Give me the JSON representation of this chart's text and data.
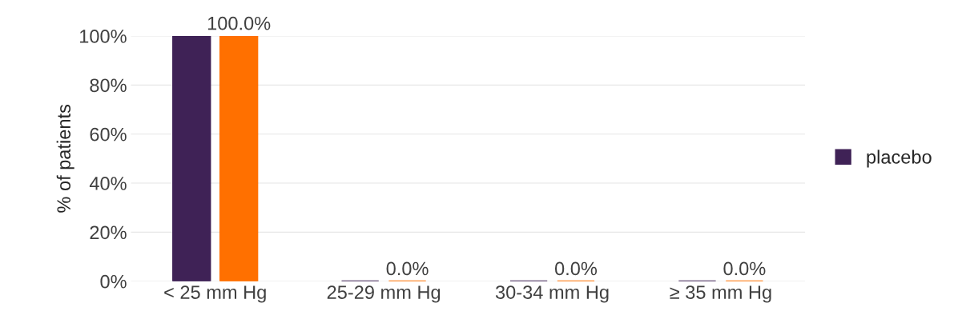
{
  "chart_data": {
    "type": "bar",
    "ylabel": "% of patients",
    "categories": [
      "< 25 mm Hg",
      "25-29 mm Hg",
      "30-34 mm Hg",
      "≥ 35 mm Hg"
    ],
    "series": [
      {
        "name": "placebo",
        "color": "#3f2256",
        "values": [
          100,
          0,
          0,
          0
        ]
      },
      {
        "color": "#ff7000",
        "values": [
          100,
          0,
          0,
          0
        ],
        "value_labels": [
          "100.0%",
          "0.0%",
          "0.0%",
          "0.0%"
        ]
      }
    ],
    "ylim": [
      0,
      100
    ],
    "yticks": [
      {
        "value": 0,
        "label": "0%"
      },
      {
        "value": 20,
        "label": "20%"
      },
      {
        "value": 40,
        "label": "40%"
      },
      {
        "value": 60,
        "label": "60%"
      },
      {
        "value": 80,
        "label": "80%"
      },
      {
        "value": 100,
        "label": "100%"
      }
    ],
    "grid": "y",
    "legend": "right"
  }
}
